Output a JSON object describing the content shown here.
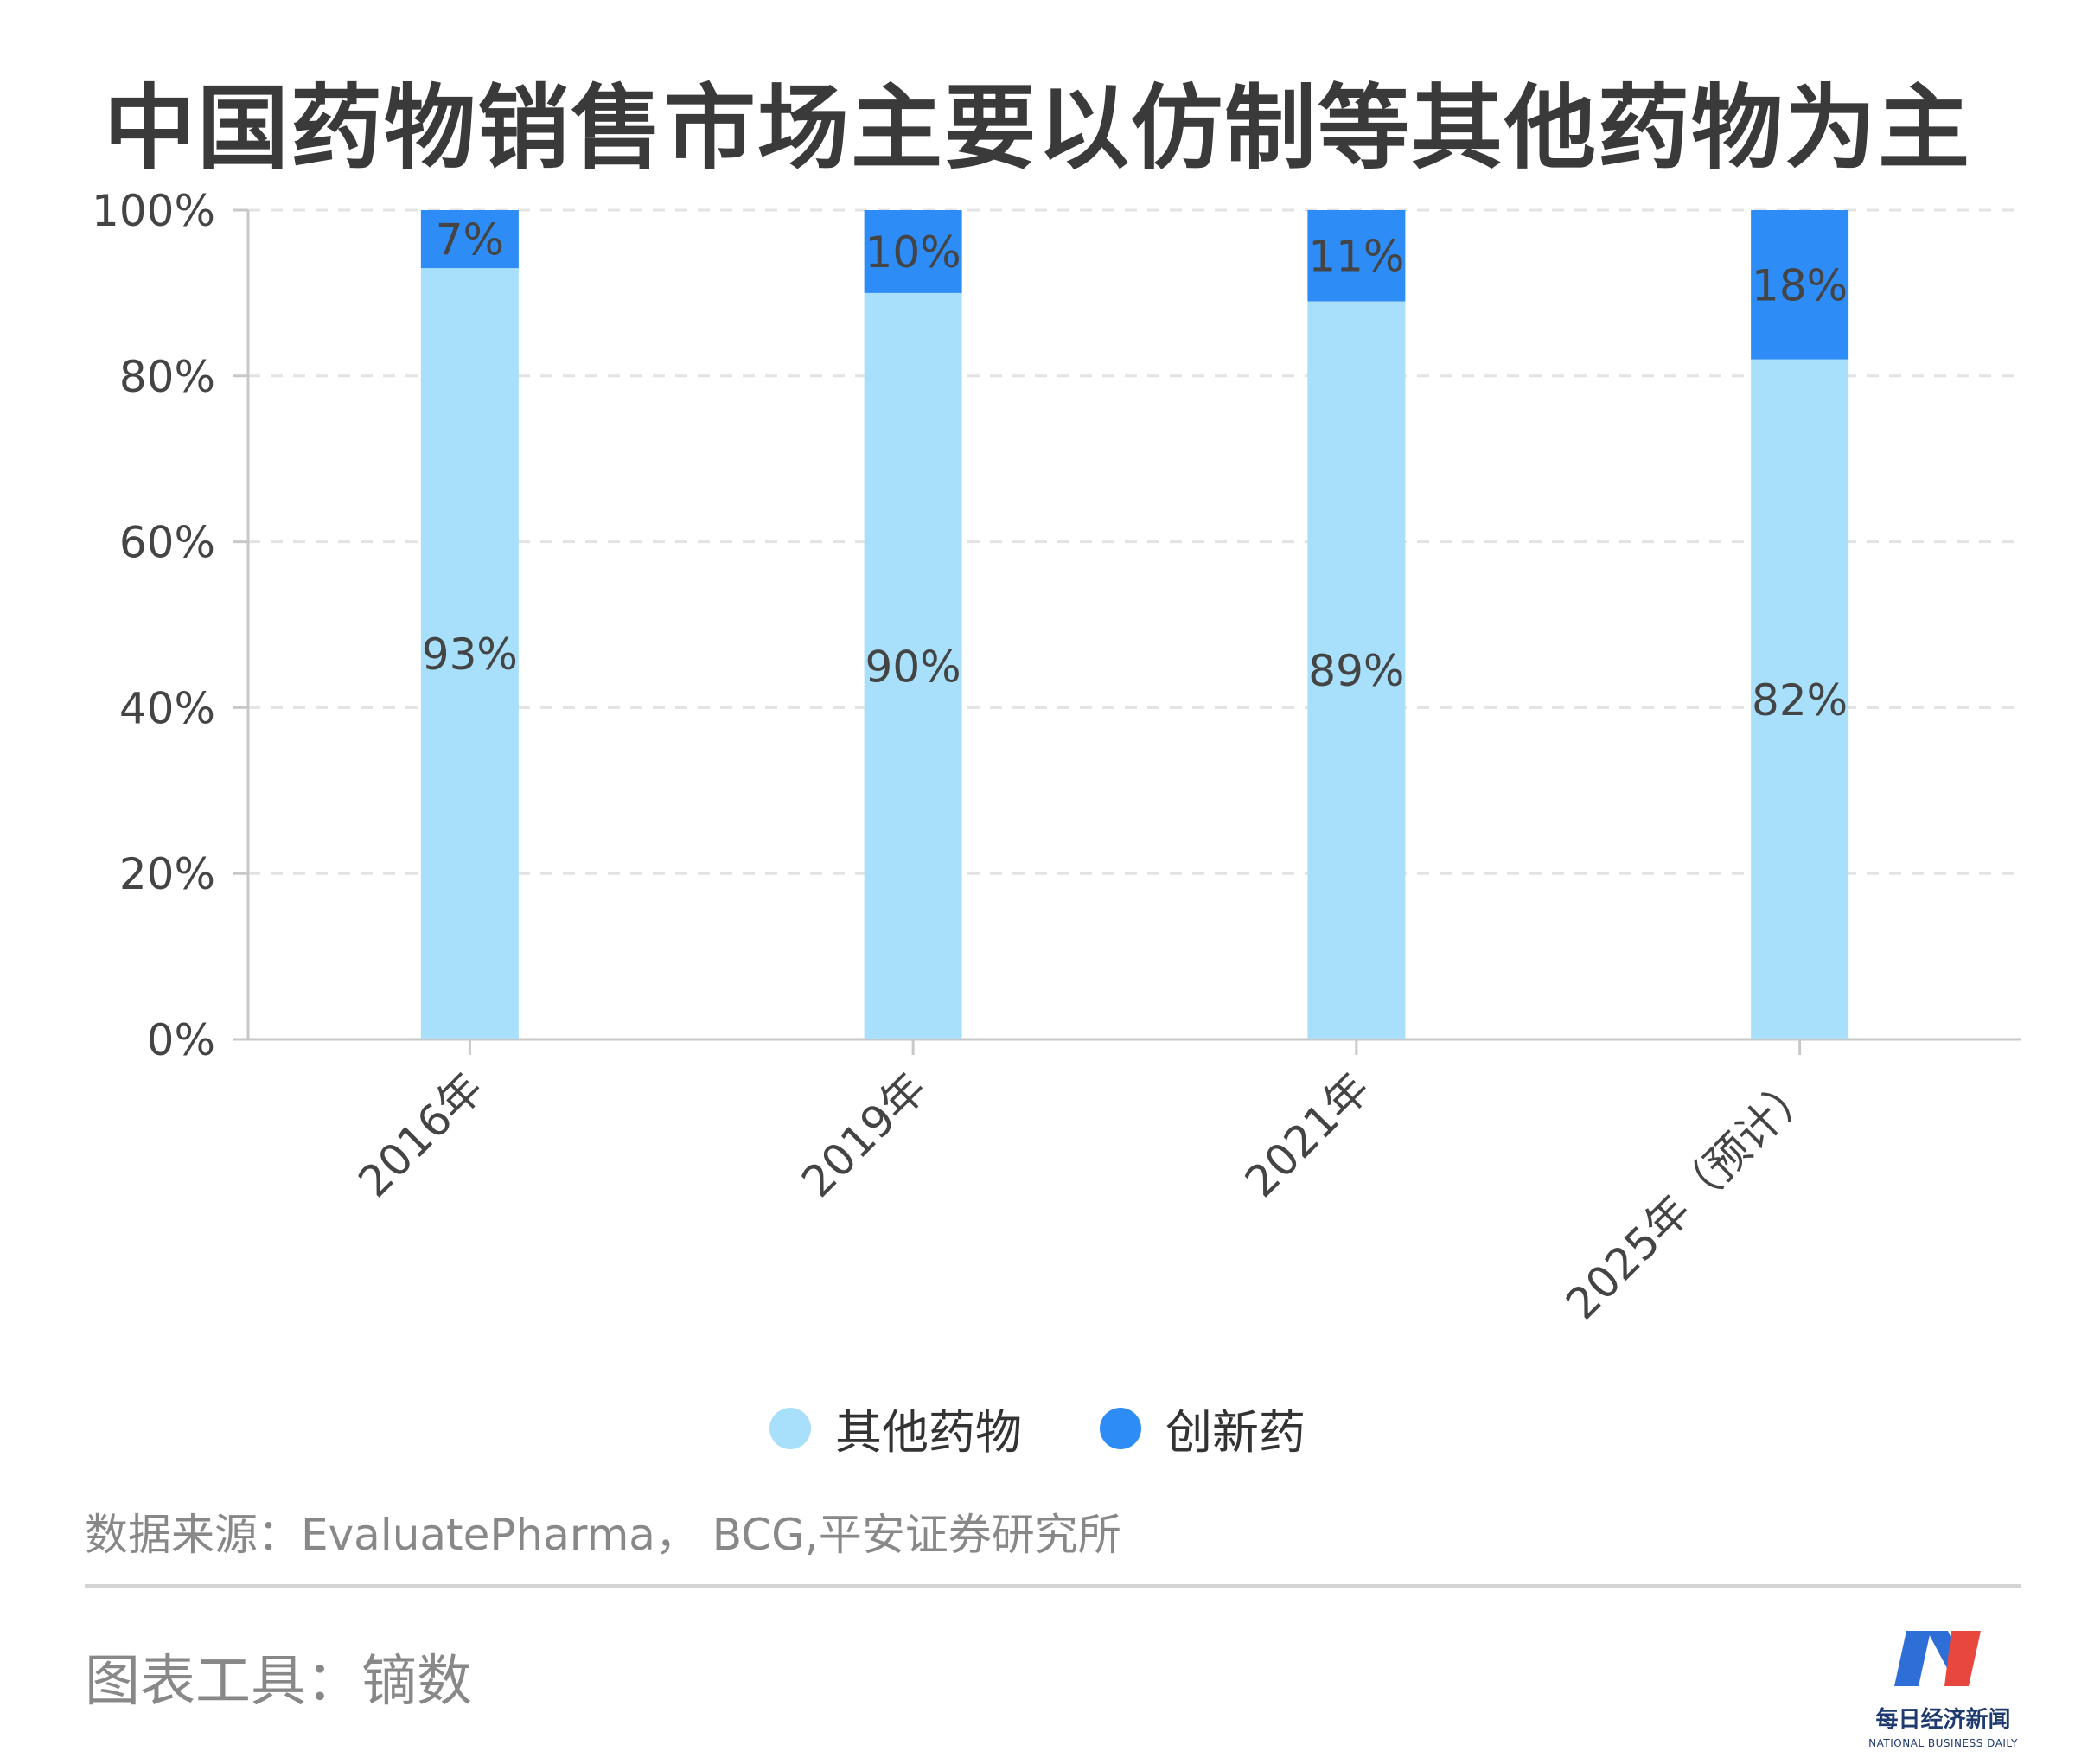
{
  "title": "中国药物销售市场主要以仿制等其他药物为主",
  "chart_data": {
    "type": "bar",
    "stacked": true,
    "categories": [
      "2016年",
      "2019年",
      "2021年",
      "2025年（预计）"
    ],
    "series": [
      {
        "name": "其他药物",
        "values": [
          93,
          90,
          89,
          82
        ],
        "labels": [
          "93%",
          "90%",
          "89%",
          "82%"
        ],
        "color": "#a8e0fb"
      },
      {
        "name": "创新药",
        "values": [
          7,
          10,
          11,
          18
        ],
        "labels": [
          "7%",
          "10%",
          "11%",
          "18%"
        ],
        "color": "#2d8cf6"
      }
    ],
    "y_ticks": [
      "0%",
      "20%",
      "40%",
      "60%",
      "80%",
      "100%"
    ],
    "ylim": [
      0,
      100
    ],
    "grid": true,
    "legend_position": "bottom-center"
  },
  "legend": [
    {
      "label": "其他药物",
      "color": "#a8e0fb"
    },
    {
      "label": "创新药",
      "color": "#2d8cf6"
    }
  ],
  "footer": {
    "source": "数据来源：EvaluatePharma， BCG,平安证券研究所",
    "tool": "图表工具：镝数",
    "brand_name": "每日经济新闻",
    "brand_sub": "NATIONAL BUSINESS DAILY"
  },
  "colors": {
    "grid": "#e3e3e3",
    "axis": "#c8c8c8",
    "text": "#444444"
  }
}
